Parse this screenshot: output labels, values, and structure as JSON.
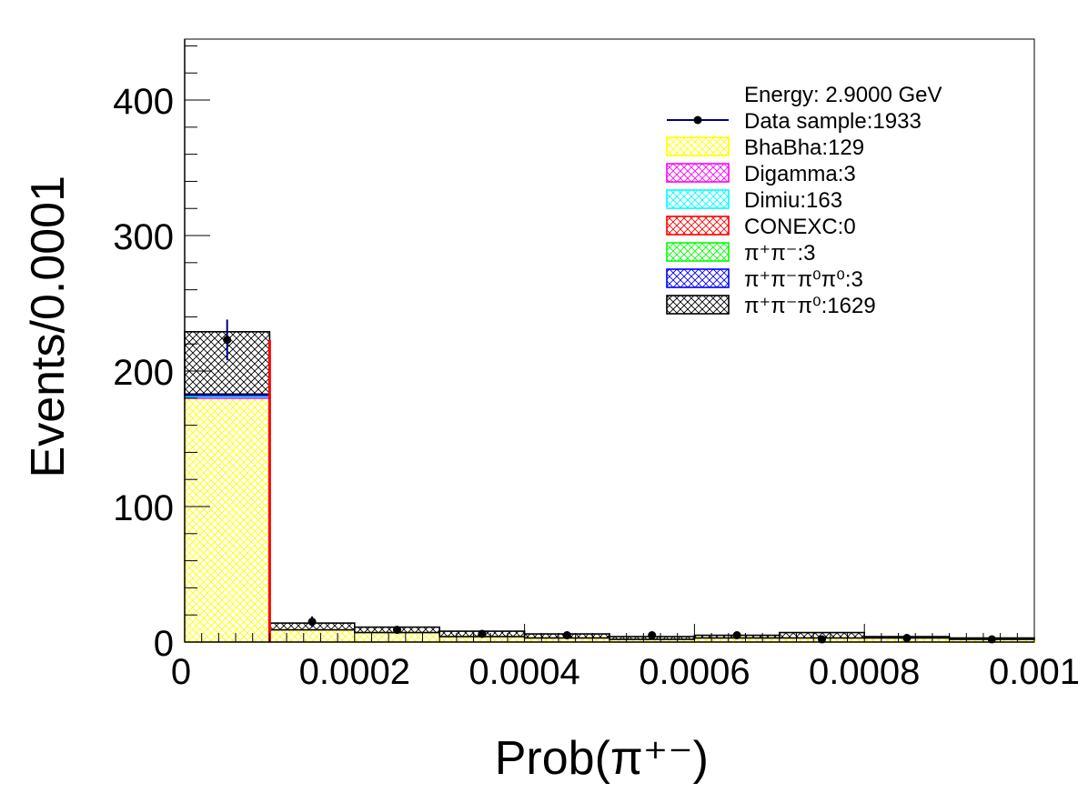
{
  "chart_data": {
    "type": "bar",
    "stacked": true,
    "xlabel": "Prob(π⁺⁻)",
    "ylabel": "Events/0.0001",
    "xlim": [
      0,
      0.001
    ],
    "ylim": [
      0,
      445
    ],
    "x_ticks": [
      {
        "value": 0,
        "label": "0"
      },
      {
        "value": 0.0002,
        "label": "0.0002"
      },
      {
        "value": 0.0004,
        "label": "0.0004"
      },
      {
        "value": 0.0006,
        "label": "0.0006"
      },
      {
        "value": 0.0008,
        "label": "0.0008"
      },
      {
        "value": 0.001,
        "label": "0.001"
      }
    ],
    "y_ticks": [
      {
        "value": 0,
        "label": "0"
      },
      {
        "value": 100,
        "label": "100"
      },
      {
        "value": 200,
        "label": "200"
      },
      {
        "value": 300,
        "label": "300"
      },
      {
        "value": 400,
        "label": "400"
      }
    ],
    "bin_edges": [
      0,
      0.0001,
      0.0002,
      0.0003,
      0.0004,
      0.0005,
      0.0006,
      0.0007,
      0.0008,
      0.0009,
      0.001
    ],
    "legend": {
      "placement": "top-right",
      "header": "Energy: 2.9000 GeV",
      "data_label": "Data sample:1933",
      "entries": [
        {
          "key": "bhabha",
          "label": "BhaBha:129"
        },
        {
          "key": "digamma",
          "label": "Digamma:3"
        },
        {
          "key": "dimiu",
          "label": "Dimiu:163"
        },
        {
          "key": "conexc",
          "label": "CONEXC:0"
        },
        {
          "key": "pipi",
          "label": "π⁺π⁻:3"
        },
        {
          "key": "pipipi0pi0",
          "label": "π⁺π⁻π⁰π⁰:3"
        },
        {
          "key": "pipipi0",
          "label": "π⁺π⁻π⁰:1629"
        }
      ]
    },
    "series": [
      {
        "key": "bhabha",
        "color": "#ffff00",
        "values": [
          180,
          9,
          7,
          4,
          3,
          2,
          3,
          3,
          3,
          2
        ]
      },
      {
        "key": "digamma",
        "color": "#ff00ff",
        "values": [
          1,
          0,
          0,
          0,
          0,
          0,
          0,
          0,
          0,
          0
        ]
      },
      {
        "key": "dimiu",
        "color": "#00ffff",
        "values": [
          1,
          0,
          0,
          0,
          0,
          0,
          0,
          0,
          0,
          0
        ]
      },
      {
        "key": "conexc",
        "color": "#ff0000",
        "values": [
          0,
          0,
          0,
          0,
          0,
          0,
          0,
          0,
          0,
          0
        ]
      },
      {
        "key": "pipi",
        "color": "#00ff00",
        "values": [
          0,
          0,
          0,
          0,
          0,
          0,
          0,
          0,
          0,
          0
        ]
      },
      {
        "key": "pipipi0pi0",
        "color": "#0000ff",
        "values": [
          1,
          0,
          0,
          0,
          0,
          0,
          0,
          0,
          0,
          0
        ]
      },
      {
        "key": "pipipi0",
        "color": "#000000",
        "values": [
          46,
          5,
          4,
          4,
          3,
          2,
          2,
          4,
          1,
          1
        ]
      }
    ],
    "conexc_line": {
      "color": "#ff0000",
      "values": [
        223,
        0,
        0,
        0,
        0,
        0,
        0,
        0,
        0,
        0
      ]
    },
    "data_points": {
      "color": "#000080",
      "x": [
        5e-05,
        0.00015,
        0.00025,
        0.00035,
        0.00045,
        0.00055,
        0.00065,
        0.00075,
        0.00085,
        0.00095
      ],
      "y": [
        223,
        15,
        9,
        6,
        5,
        5,
        5,
        2,
        3,
        2
      ],
      "yerr": [
        15,
        4,
        3,
        2.4,
        2.2,
        2.2,
        2.2,
        1.4,
        1.7,
        1.4
      ]
    }
  }
}
